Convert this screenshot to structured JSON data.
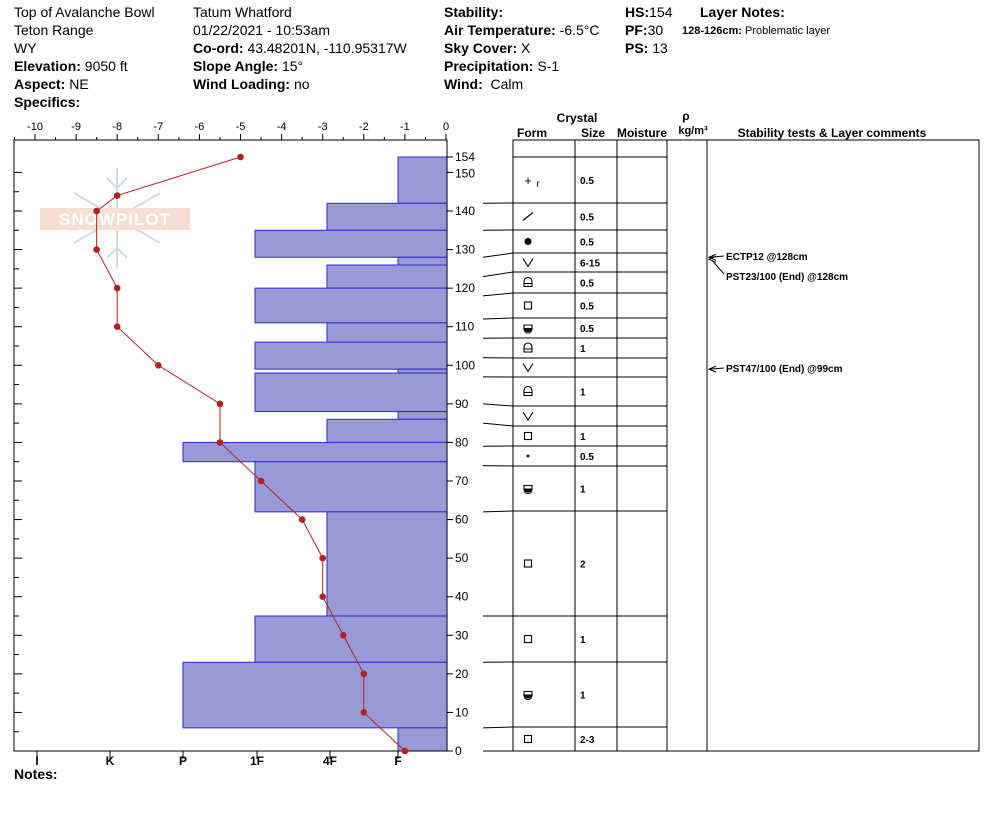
{
  "header": {
    "location": "Top of Avalanche Bowl",
    "range": "Teton Range",
    "state": "WY",
    "elevation_label": "Elevation:",
    "elevation": "9050 ft",
    "aspect_label": "Aspect:",
    "aspect": "NE",
    "specifics_label": "Specifics:",
    "observer": "Tatum Whatford",
    "datetime": "01/22/2021 - 10:53am",
    "coord_label": "Co-ord:",
    "coord": "43.48201N, -110.95317W",
    "slope_label": "Slope Angle:",
    "slope": "15°",
    "wind_loading_label": "Wind Loading:",
    "wind_loading": "no",
    "stability_label": "Stability:",
    "air_temp_label": "Air Temperature:",
    "air_temp": "-6.5°C",
    "sky_label": "Sky Cover:",
    "sky": "X",
    "precip_label": "Precipitation:",
    "precip": "S-1",
    "wind_label": "Wind:",
    "wind": "Calm",
    "hs_label": "HS:",
    "hs": "154",
    "pf_label": "PF:",
    "pf": "30",
    "ps_label": "PS:",
    "ps": "13",
    "layer_notes_label": "Layer Notes:",
    "layer_note_range": "128-126cm:",
    "layer_note_text": "Problematic layer"
  },
  "notes_label": "Notes:",
  "logo_text": "SNOWPILOT",
  "columns": {
    "crystal": "Crystal",
    "form": "Form",
    "size": "Size",
    "moisture": "Moisture",
    "rho": "ρ",
    "density_unit": "kg/m³",
    "tests": "Stability tests & Layer comments"
  },
  "colors": {
    "hardness_fill": "#9999d5",
    "hardness_stroke": "#2b2bcc",
    "temp_line": "#b22222",
    "frame": "#000000"
  },
  "chart_data": {
    "type": "snow_profile",
    "temp_axis": {
      "ticks": [
        -10,
        -9,
        -8,
        -7,
        -6,
        -5,
        -4,
        -3,
        -2,
        -1,
        0
      ],
      "range": [
        -10.5,
        0
      ]
    },
    "height_axis": {
      "ticks": [
        0,
        10,
        20,
        30,
        40,
        50,
        60,
        70,
        80,
        90,
        100,
        110,
        120,
        130,
        140,
        150,
        154
      ],
      "range": [
        0,
        154
      ]
    },
    "hardness_axis": {
      "labels": [
        "I",
        "K",
        "P",
        "1F",
        "4F",
        "F"
      ]
    },
    "temperature_profile": [
      {
        "h": 154,
        "t": -5.0
      },
      {
        "h": 144,
        "t": -8.0
      },
      {
        "h": 140,
        "t": -8.5
      },
      {
        "h": 130,
        "t": -8.5
      },
      {
        "h": 120,
        "t": -8.0
      },
      {
        "h": 110,
        "t": -8.0
      },
      {
        "h": 100,
        "t": -7.0
      },
      {
        "h": 90,
        "t": -5.5
      },
      {
        "h": 80,
        "t": -5.5
      },
      {
        "h": 70,
        "t": -4.5
      },
      {
        "h": 60,
        "t": -3.5
      },
      {
        "h": 50,
        "t": -3.0
      },
      {
        "h": 40,
        "t": -3.0
      },
      {
        "h": 30,
        "t": -2.5
      },
      {
        "h": 20,
        "t": -2.0
      },
      {
        "h": 10,
        "t": -2.0
      },
      {
        "h": 0,
        "t": -1.0
      }
    ],
    "hardness_layers": [
      {
        "top": 154,
        "bottom": 142,
        "hardness": "F+"
      },
      {
        "top": 142,
        "bottom": 135,
        "hardness": "4F"
      },
      {
        "top": 135,
        "bottom": 128,
        "hardness": "1F"
      },
      {
        "top": 128,
        "bottom": 126,
        "hardness": "F+"
      },
      {
        "top": 126,
        "bottom": 120,
        "hardness": "4F"
      },
      {
        "top": 120,
        "bottom": 111,
        "hardness": "1F"
      },
      {
        "top": 111,
        "bottom": 106,
        "hardness": "4F"
      },
      {
        "top": 106,
        "bottom": 99,
        "hardness": "1F"
      },
      {
        "top": 99,
        "bottom": 98,
        "hardness": "F+"
      },
      {
        "top": 98,
        "bottom": 88,
        "hardness": "1F"
      },
      {
        "top": 88,
        "bottom": 86,
        "hardness": "F+"
      },
      {
        "top": 86,
        "bottom": 80,
        "hardness": "4F"
      },
      {
        "top": 80,
        "bottom": 75,
        "hardness": "P"
      },
      {
        "top": 75,
        "bottom": 62,
        "hardness": "1F"
      },
      {
        "top": 62,
        "bottom": 35,
        "hardness": "4F"
      },
      {
        "top": 35,
        "bottom": 23,
        "hardness": "1F"
      },
      {
        "top": 23,
        "bottom": 6,
        "hardness": "P"
      },
      {
        "top": 6,
        "bottom": 0,
        "hardness": "F"
      }
    ],
    "crystal_layers": [
      {
        "top": 154,
        "bottom": 142,
        "form": "+r",
        "size": "0.5"
      },
      {
        "top": 142,
        "bottom": 135,
        "form": "/",
        "size": "0.5"
      },
      {
        "top": 135,
        "bottom": 128,
        "form": "●",
        "size": "0.5"
      },
      {
        "top": 128,
        "bottom": 123,
        "form": "V",
        "size": "6-15"
      },
      {
        "top": 123,
        "bottom": 118,
        "form": "rounded-faceted",
        "size": "0.5"
      },
      {
        "top": 118,
        "bottom": 112,
        "form": "□",
        "size": "0.5"
      },
      {
        "top": 112,
        "bottom": 107,
        "form": "melt-freeze",
        "size": "0.5"
      },
      {
        "top": 107,
        "bottom": 102,
        "form": "rounded-faceted",
        "size": "1"
      },
      {
        "top": 102,
        "bottom": 97,
        "form": "V",
        "size": ""
      },
      {
        "top": 97,
        "bottom": 90,
        "form": "rounded-faceted",
        "size": "1"
      },
      {
        "top": 90,
        "bottom": 85,
        "form": "V",
        "size": ""
      },
      {
        "top": 85,
        "bottom": 79,
        "form": "□",
        "size": "1"
      },
      {
        "top": 79,
        "bottom": 74,
        "form": "·",
        "size": "0.5"
      },
      {
        "top": 74,
        "bottom": 62,
        "form": "melt-freeze",
        "size": "1"
      },
      {
        "top": 62,
        "bottom": 35,
        "form": "□",
        "size": "2"
      },
      {
        "top": 35,
        "bottom": 23,
        "form": "□",
        "size": "1"
      },
      {
        "top": 23,
        "bottom": 6,
        "form": "melt-freeze",
        "size": "1"
      },
      {
        "top": 6,
        "bottom": 0,
        "form": "□",
        "size": "2-3"
      }
    ],
    "stability_tests": [
      {
        "text": "ECTP12 @128cm",
        "h": 128
      },
      {
        "text": "PST23/100 (End) @128cm",
        "h": 128
      },
      {
        "text": "PST47/100 (End) @99cm",
        "h": 99
      }
    ]
  }
}
